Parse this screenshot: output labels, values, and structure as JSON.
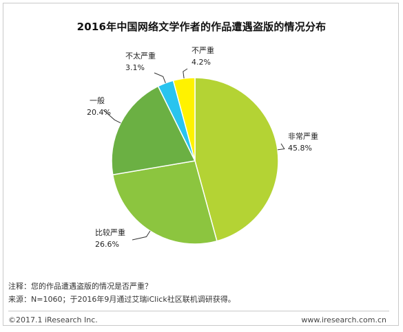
{
  "chart_data": {
    "type": "pie",
    "title": "2016年中国网络文学作者的作品遭遇盗版的情况分布",
    "slices": [
      {
        "label": "非常严重",
        "value": 45.8,
        "display": "45.8%",
        "color": "#b4d334"
      },
      {
        "label": "比较严重",
        "value": 26.6,
        "display": "26.6%",
        "color": "#8cc53f"
      },
      {
        "label": "一般",
        "value": 20.4,
        "display": "20.4%",
        "color": "#6bb043"
      },
      {
        "label": "不太严重",
        "value": 3.1,
        "display": "3.1%",
        "color": "#29c4ef"
      },
      {
        "label": "不严重",
        "value": 4.2,
        "display": "4.2%",
        "color": "#fff200"
      }
    ],
    "start": "12 o'clock",
    "direction": "clockwise"
  },
  "notes": {
    "question": "注释：您的作品遭遇盗版的情况是否严重？",
    "source": "来源：N=1060；于2016年9月通过艾瑞iClick社区联机调研获得。"
  },
  "footer": {
    "copyright": "©2017.1 iResearch Inc.",
    "website": "www.iresearch.com.cn"
  }
}
